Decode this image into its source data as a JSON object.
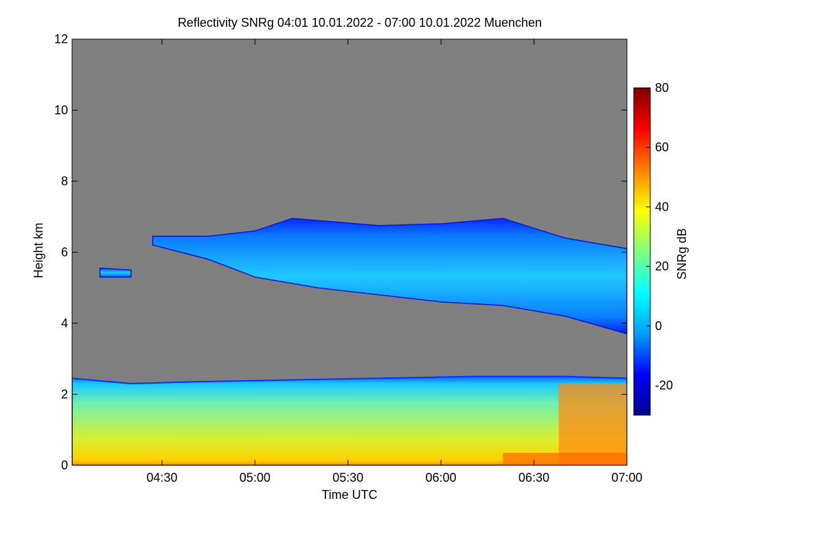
{
  "chart_data": {
    "type": "heatmap",
    "title": "Reflectivity SNRg   04:01 10.01.2022 - 07:00 10.01.2022 Muenchen",
    "xlabel": "Time UTC",
    "ylabel": "Height km",
    "x_range_minutes": [
      241,
      420
    ],
    "xticks": [
      {
        "minute": 270,
        "label": "04:30"
      },
      {
        "minute": 300,
        "label": "05:00"
      },
      {
        "minute": 330,
        "label": "05:30"
      },
      {
        "minute": 360,
        "label": "06:00"
      },
      {
        "minute": 390,
        "label": "06:30"
      },
      {
        "minute": 420,
        "label": "07:00"
      }
    ],
    "ylim": [
      0,
      12
    ],
    "yticks": [
      {
        "value": 0,
        "label": "0"
      },
      {
        "value": 2,
        "label": "2"
      },
      {
        "value": 4,
        "label": "4"
      },
      {
        "value": 6,
        "label": "6"
      },
      {
        "value": 8,
        "label": "8"
      },
      {
        "value": 10,
        "label": "10"
      },
      {
        "value": 12,
        "label": "12"
      }
    ],
    "background_color": "#808080",
    "colorbar": {
      "label": "SNRg dB",
      "range": [
        -30,
        80
      ],
      "ticks": [
        {
          "value": -20,
          "label": "-20"
        },
        {
          "value": 0,
          "label": "0"
        },
        {
          "value": 20,
          "label": "20"
        },
        {
          "value": 40,
          "label": "40"
        },
        {
          "value": 60,
          "label": "60"
        },
        {
          "value": 80,
          "label": "80"
        }
      ],
      "colors": [
        "#00008f",
        "#0000ff",
        "#00a0ff",
        "#00ffff",
        "#80ff80",
        "#ffff00",
        "#ff8000",
        "#ff0000",
        "#800000"
      ]
    },
    "layers": [
      {
        "name": "boundary layer",
        "t_start": 241,
        "t_end": 420,
        "top_km": [
          [
            241,
            2.45
          ],
          [
            260,
            2.3
          ],
          [
            280,
            2.35
          ],
          [
            310,
            2.4
          ],
          [
            340,
            2.45
          ],
          [
            370,
            2.5
          ],
          [
            400,
            2.5
          ],
          [
            420,
            2.45
          ]
        ],
        "typical_snr_db": [
          10,
          40
        ],
        "surface_snr_db": 55
      },
      {
        "name": "ice cloud",
        "t_start": 267,
        "t_end": 420,
        "top_km": [
          [
            267,
            6.45
          ],
          [
            285,
            6.45
          ],
          [
            300,
            6.6
          ],
          [
            312,
            6.95
          ],
          [
            340,
            6.75
          ],
          [
            360,
            6.8
          ],
          [
            380,
            6.95
          ],
          [
            400,
            6.4
          ],
          [
            420,
            6.1
          ]
        ],
        "base_km": [
          [
            267,
            6.2
          ],
          [
            285,
            5.8
          ],
          [
            300,
            5.3
          ],
          [
            320,
            5.0
          ],
          [
            340,
            4.8
          ],
          [
            360,
            4.6
          ],
          [
            380,
            4.5
          ],
          [
            400,
            4.2
          ],
          [
            420,
            3.7
          ]
        ],
        "typical_snr_db": [
          -15,
          10
        ]
      },
      {
        "name": "isolated echo",
        "t_start": 250,
        "t_end": 260,
        "top_km": [
          [
            250,
            5.55
          ],
          [
            260,
            5.5
          ]
        ],
        "base_km": [
          [
            250,
            5.3
          ],
          [
            260,
            5.3
          ]
        ],
        "typical_snr_db": [
          -15,
          0
        ]
      }
    ]
  }
}
